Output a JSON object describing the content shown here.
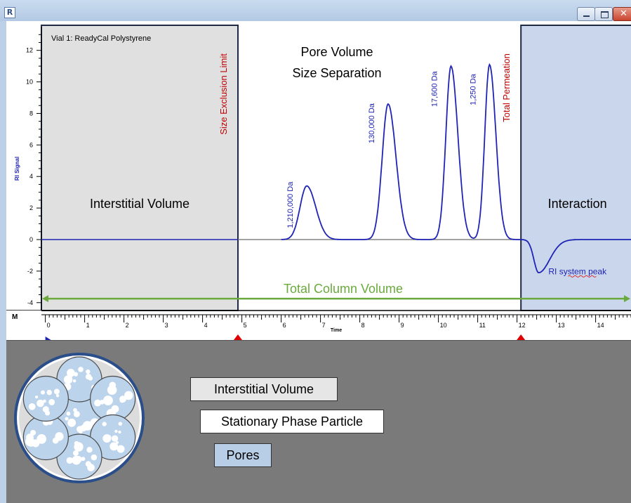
{
  "window": {
    "app_icon": "R",
    "close_glyph": "✕"
  },
  "chart_data": {
    "type": "line",
    "title": "Vial 1: ReadyCal Polystyrene",
    "xlabel": "Time",
    "ylabel": "RI Signal",
    "corner_label": "M",
    "xlim": [
      -0.1,
      14.9
    ],
    "ylim": [
      -4.5,
      13.5
    ],
    "x_ticks": [
      "0",
      "1",
      "2",
      "3",
      "4",
      "5",
      "6",
      "7",
      "8",
      "9",
      "10",
      "11",
      "12",
      "13",
      "14"
    ],
    "y_ticks": [
      "12",
      "10",
      "8",
      "6",
      "4",
      "2",
      "0",
      "-2",
      "-4"
    ],
    "y_tick_values": [
      12,
      10,
      8,
      6,
      4,
      2,
      0,
      -2,
      -4
    ],
    "grid": false,
    "regions": [
      {
        "label": "Interstitial Volume",
        "x_start": -0.1,
        "x_end": 4.9,
        "color": "#e0e0e0"
      },
      {
        "label": "Pore Volume\nSize Separation",
        "x_start": 4.9,
        "x_end": 12.1,
        "color": "#ffffff"
      },
      {
        "label": "Interaction",
        "x_start": 12.1,
        "x_end": 14.9,
        "color": "#c9d6ec"
      }
    ],
    "region_text": {
      "interstitial": "Interstitial Volume",
      "pore_line1": "Pore Volume",
      "pore_line2": "Size Separation",
      "interaction": "Interaction"
    },
    "boundary_labels": [
      {
        "text": "Size Exclusion Limit",
        "x": 4.9
      },
      {
        "text": "Total Permeation",
        "x": 12.1
      }
    ],
    "markers_x": [
      0,
      4.9,
      12.1
    ],
    "peaks": [
      {
        "label": "1,210,000 Da",
        "x": 6.65,
        "height": 3.4,
        "sigma": 0.17
      },
      {
        "label": "130,000 Da",
        "x": 8.72,
        "height": 8.6,
        "sigma": 0.15
      },
      {
        "label": "17,600 Da",
        "x": 10.32,
        "height": 11.0,
        "sigma": 0.13
      },
      {
        "label": "1,250 Da",
        "x": 11.3,
        "height": 11.1,
        "sigma": 0.12
      }
    ],
    "system_peak": {
      "label": "RI system peak",
      "x": 12.55,
      "depth": -2.1
    },
    "span": {
      "label": "Total Column Volume",
      "x_start": -0.1,
      "x_end": 14.9,
      "y": -3.75
    },
    "colors": {
      "trace": "#1f24b5",
      "baseline": "#6b6b6b",
      "boundary_label": "#c00000",
      "peak_label": "#1f24b5",
      "span": "#6aaa3d",
      "marker": "#e00000",
      "axis_label": "#1f24b5"
    }
  },
  "legend": {
    "items": [
      {
        "label": "Interstitial Volume",
        "color": "#e6e6e6"
      },
      {
        "label": "Stationary Phase Particle",
        "color": "#ffffff"
      },
      {
        "label": "Pores",
        "color": "#b8cde6"
      }
    ]
  }
}
